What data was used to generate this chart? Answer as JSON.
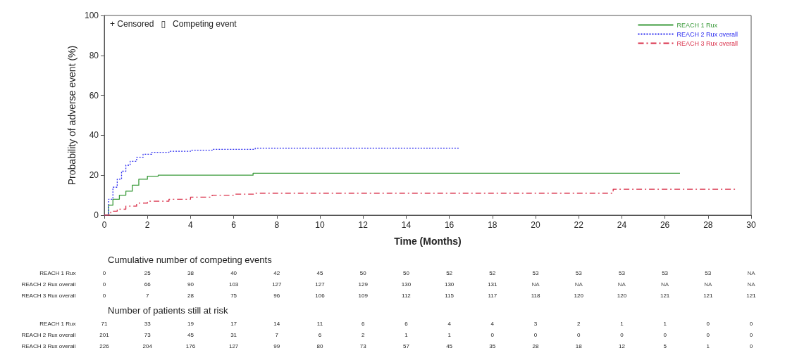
{
  "chart_data": [
    {
      "type": "step",
      "xlabel": "Time (Months)",
      "ylabel": "Probability of adverse event (%)",
      "xlim": [
        0,
        30
      ],
      "xticks": [
        0,
        2,
        4,
        6,
        8,
        10,
        12,
        14,
        16,
        18,
        20,
        22,
        24,
        26,
        28,
        30
      ],
      "ylim": [
        0,
        100
      ],
      "yticks": [
        0,
        20,
        40,
        60,
        80,
        100
      ],
      "grid": false,
      "legend": "top right",
      "annotations": [
        "+ Censored   ▯   Competing event"
      ],
      "series": [
        {
          "name": "REACH 1 Rux",
          "color": "#3a9a3a",
          "line_style": "solid",
          "x": [
            0,
            0.2,
            0.4,
            0.7,
            1.0,
            1.3,
            1.6,
            2.0,
            2.5,
            6.9,
            26.7
          ],
          "values": [
            0,
            5,
            8,
            10,
            12,
            15,
            18,
            19.5,
            20,
            21,
            21
          ]
        },
        {
          "name": "REACH 2 Rux overall",
          "color": "#2b2bef",
          "line_style": "dotted",
          "x": [
            0,
            0.2,
            0.4,
            0.6,
            0.8,
            1.0,
            1.2,
            1.5,
            1.8,
            2.2,
            3,
            4,
            5,
            7,
            16.5
          ],
          "values": [
            0,
            8,
            14,
            18,
            22,
            25,
            27,
            29,
            30.5,
            31.5,
            32,
            32.5,
            33,
            33.5,
            33.5
          ]
        },
        {
          "name": "REACH 3 Rux overall",
          "color": "#d9304a",
          "line_style": "dashed",
          "x": [
            0,
            0.3,
            0.6,
            1.0,
            1.5,
            2,
            3,
            4,
            5,
            6,
            7,
            23.6,
            29.3
          ],
          "values": [
            0,
            2,
            3,
            4.5,
            6,
            7,
            8,
            9,
            10,
            10.5,
            11,
            13,
            13
          ]
        }
      ]
    },
    {
      "type": "heatmap",
      "title": "Cumulative number of competing events",
      "data_labels": true,
      "categories": [
        null,
        null,
        null,
        null,
        null,
        null,
        null,
        null,
        null,
        null,
        null,
        null,
        null,
        null,
        null,
        null
      ],
      "y_categories": [
        "REACH 1 Rux",
        "REACH 2 Rux overall",
        "REACH 3 Rux overall"
      ],
      "cells": [
        [
          0,
          25,
          38,
          40,
          42,
          45,
          50,
          50,
          52,
          52,
          53,
          53,
          53,
          53,
          53,
          null
        ],
        [
          0,
          66,
          90,
          103,
          127,
          127,
          129,
          130,
          130,
          131,
          null,
          null,
          null,
          null,
          null,
          null
        ],
        [
          0,
          7,
          28,
          75,
          96,
          106,
          109,
          112,
          115,
          117,
          118,
          120,
          120,
          121,
          121,
          121
        ]
      ],
      "cell_labels": [
        [
          "0",
          "25",
          "38",
          "40",
          "42",
          "45",
          "50",
          "50",
          "52",
          "52",
          "53",
          "53",
          "53",
          "53",
          "53",
          "NA"
        ],
        [
          "0",
          "66",
          "90",
          "103",
          "127",
          "127",
          "129",
          "130",
          "130",
          "131",
          "NA",
          "NA",
          "NA",
          "NA",
          "NA",
          "NA"
        ],
        [
          "0",
          "7",
          "28",
          "75",
          "96",
          "106",
          "109",
          "112",
          "115",
          "117",
          "118",
          "120",
          "120",
          "121",
          "121",
          "121"
        ]
      ]
    },
    {
      "type": "heatmap",
      "title": "Number of patients still at risk",
      "data_labels": true,
      "categories": [
        null,
        null,
        null,
        null,
        null,
        null,
        null,
        null,
        null,
        null,
        null,
        null,
        null,
        null,
        null,
        null
      ],
      "y_categories": [
        "REACH 1 Rux",
        "REACH 2 Rux overall",
        "REACH 3 Rux overall"
      ],
      "cells": [
        [
          71,
          33,
          19,
          17,
          14,
          11,
          6,
          6,
          4,
          4,
          3,
          2,
          1,
          1,
          0,
          0
        ],
        [
          201,
          73,
          45,
          31,
          7,
          6,
          2,
          1,
          1,
          0,
          0,
          0,
          0,
          0,
          0,
          0
        ],
        [
          226,
          204,
          176,
          127,
          99,
          80,
          73,
          57,
          45,
          35,
          28,
          18,
          12,
          5,
          1,
          0
        ]
      ]
    }
  ]
}
